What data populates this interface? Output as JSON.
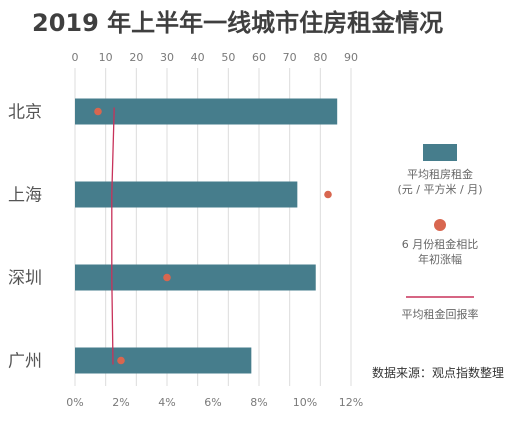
{
  "chart_data": {
    "type": "bar",
    "orientation": "horizontal",
    "title": "2019 年上半年一线城市住房租金情况",
    "categories": [
      "北京",
      "上海",
      "深圳",
      "广州"
    ],
    "top_axis": {
      "ticks": [
        "0",
        "10",
        "20",
        "30",
        "40",
        "50",
        "60",
        "70",
        "80",
        "90"
      ],
      "lim": [
        0,
        90
      ]
    },
    "bottom_axis": {
      "ticks": [
        "0%",
        "2%",
        "4%",
        "6%",
        "8%",
        "10%",
        "12%"
      ],
      "lim": [
        0,
        12
      ]
    },
    "grid": true,
    "series": [
      {
        "name": "平均租房租金",
        "name_lines": [
          "平均租房租金",
          "(元 / 平方米 / 月)"
        ],
        "type": "bar",
        "axis": "top",
        "color": "#467d8c",
        "values": [
          85.5,
          72.5,
          78.5,
          57.5
        ]
      },
      {
        "name": "6 月份租金相比年初涨幅",
        "name_lines": [
          "6 月份租金相比",
          "年初涨幅"
        ],
        "type": "scatter",
        "axis": "bottom",
        "unit": "%",
        "color": "#d8664f",
        "values": [
          1.0,
          11.0,
          4.0,
          2.0
        ]
      },
      {
        "name": "平均租金回报率",
        "name_lines": [
          "平均租金回报率"
        ],
        "type": "line",
        "axis": "bottom",
        "unit": "%",
        "color": "#c8325a",
        "values": [
          1.7,
          1.6,
          1.6,
          1.65
        ]
      }
    ],
    "legend_position": "right"
  },
  "source_note": "数据来源：观点指数整理"
}
